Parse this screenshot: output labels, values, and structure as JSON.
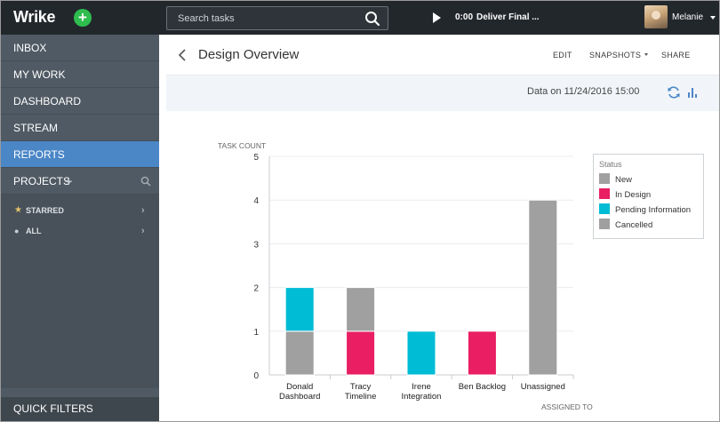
{
  "topbar": {
    "logo": "Wrike",
    "add_label": "+",
    "search_placeholder": "Search tasks",
    "timer": "0:00",
    "task_name": "Deliver Final ...",
    "username": "Melanie"
  },
  "sidebar": {
    "items": [
      {
        "label": "INBOX"
      },
      {
        "label": "MY WORK"
      },
      {
        "label": "DASHBOARD"
      },
      {
        "label": "STREAM"
      },
      {
        "label": "REPORTS",
        "active": true
      },
      {
        "label": "PROJECTS"
      }
    ],
    "projects_plus": "+",
    "sub_items": [
      {
        "label": "STARRED",
        "icon": "star-icon"
      },
      {
        "label": "ALL",
        "icon": "bullet-icon"
      }
    ],
    "quick_filters": "QUICK FILTERS"
  },
  "header": {
    "title": "Design Overview",
    "edit": "EDIT",
    "snapshots": "SNAPSHOTS",
    "share": "SHARE"
  },
  "databar": {
    "date_text": "Data on 11/24/2016 15:00"
  },
  "colors": {
    "new": "#a0a0a0",
    "in_design": "#e91e63",
    "pending": "#00bcd4",
    "cancelled": "#a0a0a0",
    "accent": "#4b86c7"
  },
  "chart_data": {
    "type": "bar",
    "stacked": true,
    "ylabel": "TASK COUNT",
    "xlabel": "ASSIGNED TO",
    "ylim": [
      0,
      5
    ],
    "yticks": [
      0,
      1,
      2,
      3,
      4,
      5
    ],
    "categories": [
      [
        "Donald",
        "Dashboard"
      ],
      [
        "Tracy",
        "Timeline"
      ],
      [
        "Irene",
        "Integration"
      ],
      [
        "Ben Backlog"
      ],
      [
        "Unassigned"
      ]
    ],
    "legend_title": "Status",
    "legend_position": "top-right",
    "series": [
      {
        "name": "New",
        "color": "#a0a0a0",
        "values": [
          1,
          0,
          0,
          0,
          0
        ]
      },
      {
        "name": "In Design",
        "color": "#e91e63",
        "values": [
          0,
          1,
          0,
          1,
          0
        ]
      },
      {
        "name": "Pending Information",
        "color": "#00bcd4",
        "values": [
          1,
          0,
          1,
          0,
          0
        ]
      },
      {
        "name": "Cancelled",
        "color": "#a0a0a0",
        "values": [
          0,
          1,
          0,
          0,
          4
        ]
      }
    ]
  }
}
